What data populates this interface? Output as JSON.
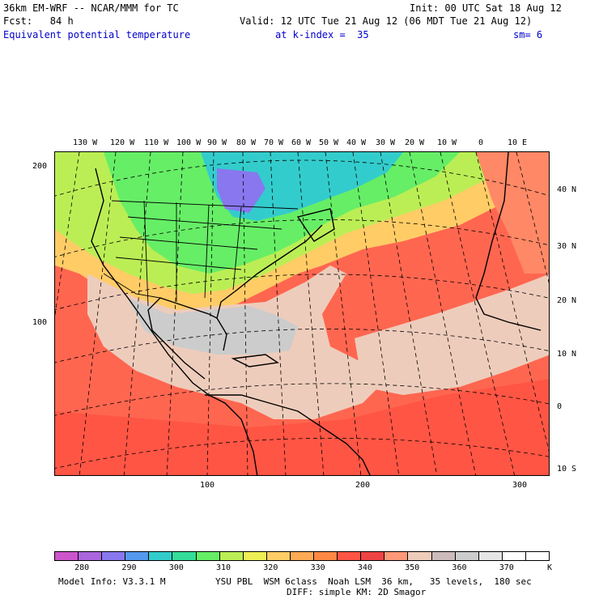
{
  "header": {
    "model": "36km EM-WRF -- NCAR/MMM for TC",
    "init": "Init: 00 UTC Sat 18 Aug 12",
    "fcst": "Fcst:   84 h",
    "valid": "Valid: 12 UTC Tue 21 Aug 12 (06 MDT Tue 21 Aug 12)",
    "field": "Equivalent potential temperature",
    "level": "at k-index =  35",
    "smooth": "sm= 6"
  },
  "map": {
    "lon_labels": [
      "130 W",
      "120 W",
      "110 W",
      "100 W",
      "90 W",
      "80 W",
      "70 W",
      "60 W",
      "50 W",
      "40 W",
      "30 W",
      "20 W",
      "10 W",
      "0",
      "10 E"
    ],
    "lat_labels": [
      "40 N",
      "30 N",
      "20 N",
      "10 N",
      "0",
      "10 S"
    ],
    "y_grid_labels": [
      "200",
      "100"
    ],
    "x_grid_labels": [
      "100",
      "200",
      "300"
    ]
  },
  "legend": {
    "ticks": [
      "280",
      "290",
      "300",
      "310",
      "320",
      "330",
      "340",
      "350",
      "360",
      "370"
    ],
    "unit": "K",
    "colors": [
      "#cc55cc",
      "#aa66dd",
      "#8877ee",
      "#5599ee",
      "#33cccc",
      "#33dd99",
      "#66ee66",
      "#bbee55",
      "#eeee55",
      "#ffcc66",
      "#ffaa55",
      "#ff8844",
      "#ff5544",
      "#ee4444",
      "#ff9977",
      "#eeccbb",
      "#ccbbbb",
      "#cccccc",
      "#e6e6e6",
      "#ffffff",
      "#ffffff"
    ]
  },
  "footer": {
    "model_info": "Model Info: V3.3.1 M",
    "physics": "YSU PBL  WSM 6class  Noah LSM  36 km,   35 levels,  180 sec",
    "diff": "DIFF: simple KM: 2D Smagor"
  }
}
